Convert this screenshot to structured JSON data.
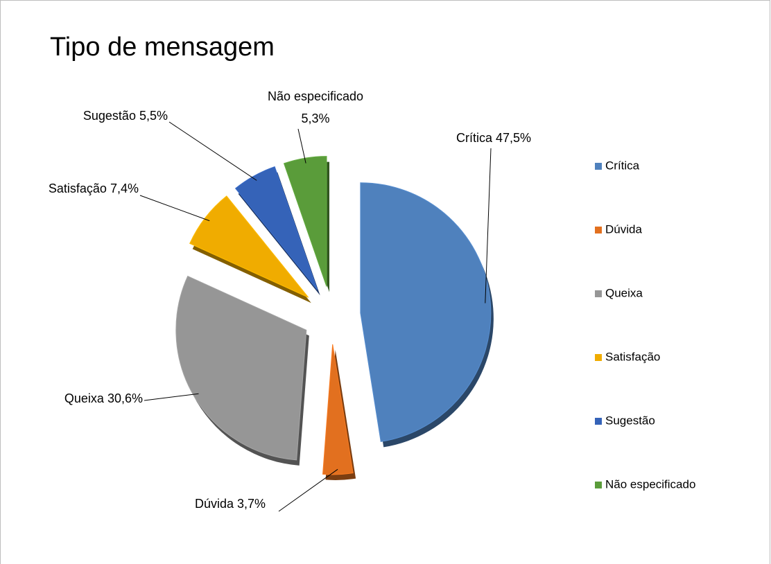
{
  "chart_data": {
    "type": "pie",
    "title": "Tipo de mensagem",
    "categories": [
      "Crítica",
      "Dúvida",
      "Queixa",
      "Satisfação",
      "Sugestão",
      "Não especificado"
    ],
    "values": [
      47.5,
      3.7,
      30.6,
      7.4,
      5.5,
      5.3
    ],
    "value_labels": [
      "47,5%",
      "3,7%",
      "30,6%",
      "7,4%",
      "5,5%",
      "5,3%"
    ],
    "colors": [
      "#4f81bd",
      "#e2701f",
      "#969696",
      "#f0ac00",
      "#3563b8",
      "#5a9c3a"
    ],
    "legend": "right"
  }
}
